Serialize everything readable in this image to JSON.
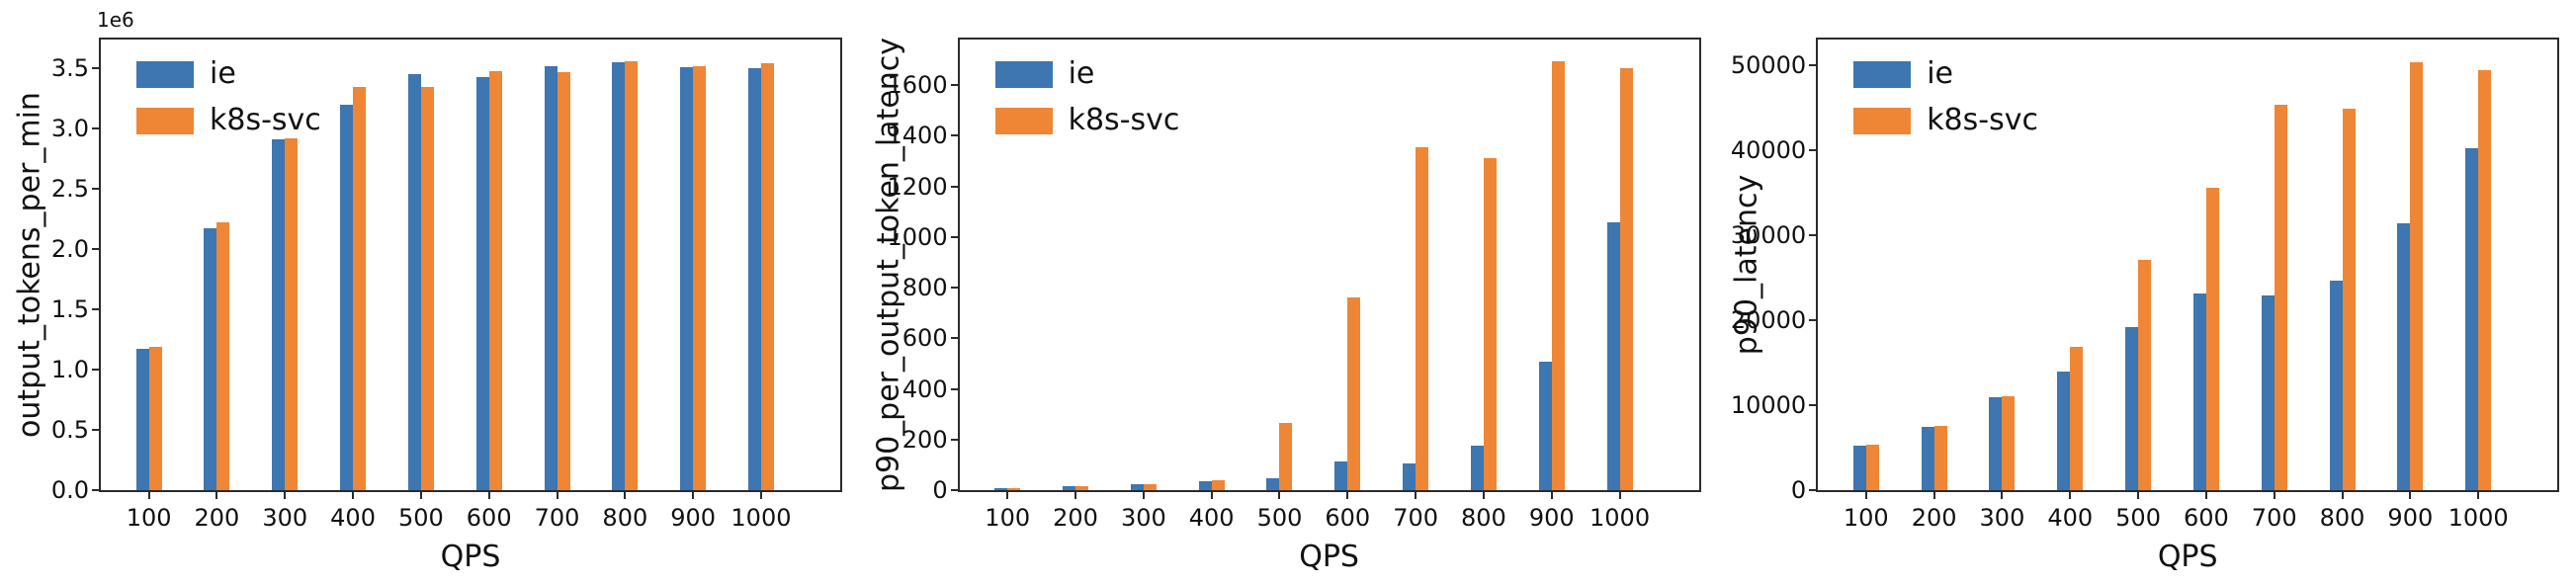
{
  "figure": {
    "background": "#ffffff"
  },
  "colors": {
    "ie": "#3d76b0",
    "k8s_svc": "#ee8635",
    "spine": "#2b2b2b"
  },
  "chart_data": [
    {
      "type": "bar",
      "title": "",
      "ylabel": "output_tokens_per_min",
      "xlabel": "QPS",
      "y_offset_text": "1e6",
      "grid": false,
      "legend_position": "upper left",
      "categories": [
        "100",
        "200",
        "300",
        "400",
        "500",
        "600",
        "700",
        "800",
        "900",
        "1000"
      ],
      "series": [
        {
          "name": "ie",
          "color": "#3d76b0",
          "values": [
            1170000,
            2170000,
            2910000,
            3200000,
            3450000,
            3430000,
            3520000,
            3550000,
            3510000,
            3500000
          ]
        },
        {
          "name": "k8s-svc",
          "color": "#ee8635",
          "values": [
            1190000,
            2220000,
            2920000,
            3350000,
            3350000,
            3480000,
            3470000,
            3560000,
            3520000,
            3540000
          ]
        }
      ],
      "yticks": {
        "labels": [
          "0.0",
          "0.5",
          "1.0",
          "1.5",
          "2.0",
          "2.5",
          "3.0",
          "3.5"
        ],
        "values": [
          0,
          500000,
          1000000,
          1500000,
          2000000,
          2500000,
          3000000,
          3500000
        ]
      },
      "ylim": [
        0,
        3740000
      ]
    },
    {
      "type": "bar",
      "title": "",
      "ylabel": "p90_per_output_token_latency",
      "xlabel": "QPS",
      "y_offset_text": "",
      "grid": false,
      "legend_position": "upper left",
      "categories": [
        "100",
        "200",
        "300",
        "400",
        "500",
        "600",
        "700",
        "800",
        "900",
        "1000"
      ],
      "series": [
        {
          "name": "ie",
          "color": "#3d76b0",
          "values": [
            8,
            17,
            24,
            36,
            48,
            115,
            106,
            175,
            508,
            1058
          ]
        },
        {
          "name": "k8s-svc",
          "color": "#ee8635",
          "values": [
            9,
            17,
            24,
            39,
            265,
            760,
            1355,
            1310,
            1695,
            1665
          ]
        }
      ],
      "yticks": {
        "labels": [
          "0",
          "200",
          "400",
          "600",
          "800",
          "1000",
          "1200",
          "1400",
          "1600"
        ],
        "values": [
          0,
          200,
          400,
          600,
          800,
          1000,
          1200,
          1400,
          1600
        ]
      },
      "ylim": [
        0,
        1780
      ]
    },
    {
      "type": "bar",
      "title": "",
      "ylabel": "p90_latency",
      "xlabel": "QPS",
      "y_offset_text": "",
      "grid": false,
      "legend_position": "upper left",
      "categories": [
        "100",
        "200",
        "300",
        "400",
        "500",
        "600",
        "700",
        "800",
        "900",
        "1000"
      ],
      "series": [
        {
          "name": "ie",
          "color": "#3d76b0",
          "values": [
            5200,
            7400,
            10900,
            14000,
            19200,
            23100,
            22900,
            24700,
            31400,
            40200
          ]
        },
        {
          "name": "k8s-svc",
          "color": "#ee8635",
          "values": [
            5400,
            7600,
            11100,
            16900,
            27100,
            35600,
            45300,
            44900,
            50300,
            49400
          ]
        }
      ],
      "yticks": {
        "labels": [
          "0",
          "10000",
          "20000",
          "30000",
          "40000",
          "50000"
        ],
        "values": [
          0,
          10000,
          20000,
          30000,
          40000,
          50000
        ]
      },
      "ylim": [
        0,
        53000
      ]
    }
  ]
}
